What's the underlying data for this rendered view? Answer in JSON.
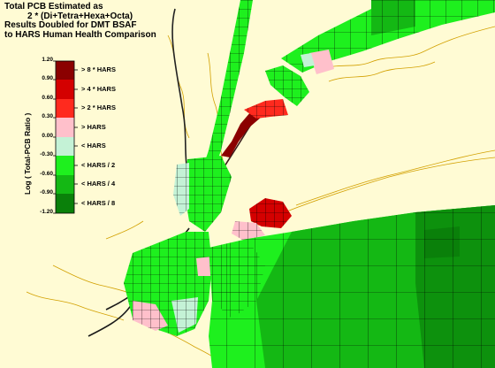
{
  "title": {
    "line1": "Total PCB Estimated as",
    "line2": "2 * (Di+Tetra+Hexa+Octa)",
    "line3": "Results Doubled for DMT BSAF",
    "line4": "to HARS Human Health Comparison"
  },
  "legend": {
    "axis_label": "Log ( Total-PCB Ratio )",
    "ticks": [
      "1.20",
      "0.90",
      "0.60",
      "0.30",
      "0.00",
      "-0.30",
      "-0.60",
      "-0.90",
      "-1.20"
    ],
    "categories": [
      {
        "label": "> 8 * HARS",
        "color": "#8b0000"
      },
      {
        "label": "> 4 * HARS",
        "color": "#d40000"
      },
      {
        "label": "> 2 * HARS",
        "color": "#ff2a1e"
      },
      {
        "label": "> HARS",
        "color": "#ffc0cb"
      },
      {
        "label": "< HARS",
        "color": "#c4f2d6"
      },
      {
        "label": "< HARS / 2",
        "color": "#1ef01e"
      },
      {
        "label": "< HARS / 4",
        "color": "#14b814"
      },
      {
        "label": "< HARS / 8",
        "color": "#0a800a"
      }
    ]
  },
  "colors": {
    "land": "#fffbd4",
    "shoreline": "#d2a000",
    "grid_line": "#000000"
  }
}
